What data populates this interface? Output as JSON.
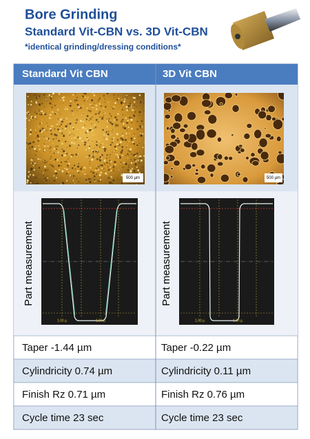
{
  "header": {
    "title": "Bore Grinding",
    "subtitle": "Standard Vit-CBN vs. 3D Vit-CBN",
    "note": "*identical grinding/dressing conditions*"
  },
  "table": {
    "columns": [
      "Standard Vit CBN",
      "3D Vit CBN"
    ],
    "scale_labels": [
      "500 µm",
      "500 µm"
    ],
    "row_label": "Part measurement",
    "graphs": [
      {
        "tick_labels": [
          "1.00 µ",
          "1.00 µ"
        ]
      },
      {
        "tick_labels": [
          "1.00 µ",
          "1.00 µ"
        ]
      }
    ],
    "rows": [
      [
        "Taper -1.44 µm",
        "Taper -0.22 µm"
      ],
      [
        "Cylindricity 0.74 µm",
        "Cylindricity 0.11 µm"
      ],
      [
        "Finish Rz 0.71 µm",
        "Finish Rz 0.76 µm"
      ],
      [
        "Cycle time 23 sec",
        "Cycle time 23 sec"
      ]
    ]
  }
}
